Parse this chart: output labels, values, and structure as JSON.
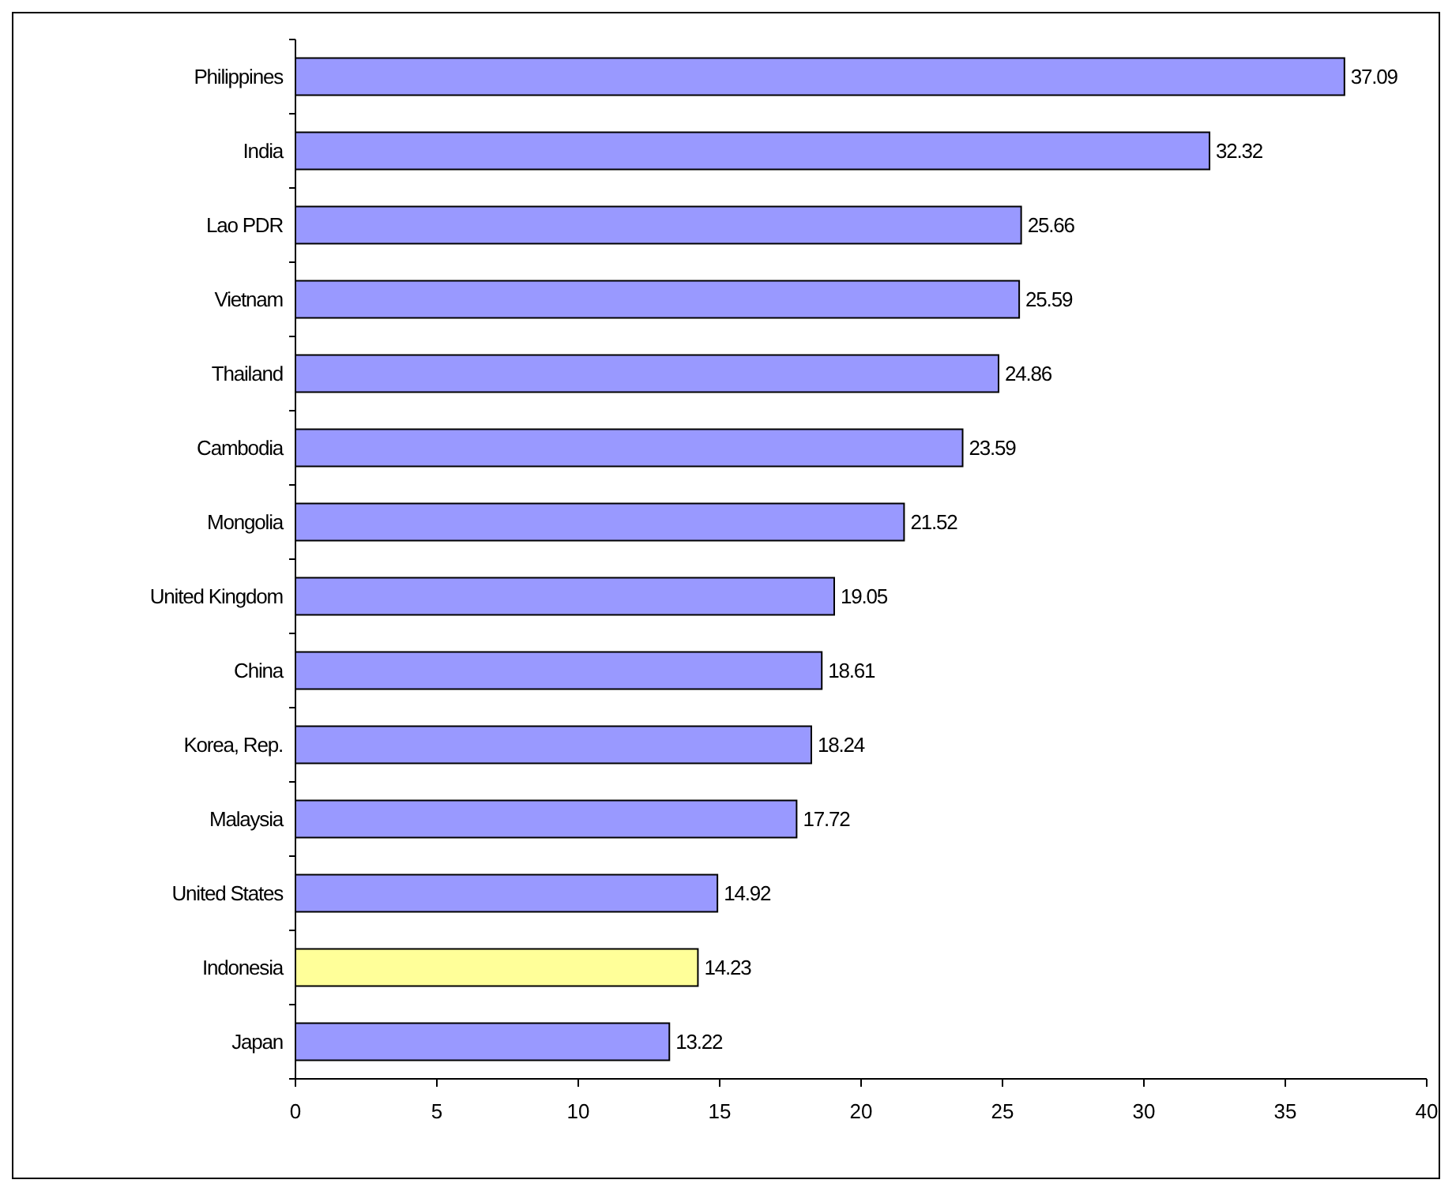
{
  "chart_data": {
    "type": "bar",
    "orientation": "horizontal",
    "categories": [
      "Philippines",
      "India",
      "Lao PDR",
      "Vietnam",
      "Thailand",
      "Cambodia",
      "Mongolia",
      "United Kingdom",
      "China",
      "Korea, Rep.",
      "Malaysia",
      "United States",
      "Indonesia",
      "Japan"
    ],
    "values": [
      37.09,
      32.32,
      25.66,
      25.59,
      24.86,
      23.59,
      21.52,
      19.05,
      18.61,
      18.24,
      17.72,
      14.92,
      14.23,
      13.22
    ],
    "colors": [
      "#9999ff",
      "#9999ff",
      "#9999ff",
      "#9999ff",
      "#9999ff",
      "#9999ff",
      "#9999ff",
      "#9999ff",
      "#9999ff",
      "#9999ff",
      "#9999ff",
      "#9999ff",
      "#ffff99",
      "#9999ff"
    ],
    "xlim": [
      0,
      40
    ],
    "xticks": [
      0,
      5,
      10,
      15,
      20,
      25,
      30,
      35,
      40
    ],
    "data_labels": true,
    "grid": false
  }
}
